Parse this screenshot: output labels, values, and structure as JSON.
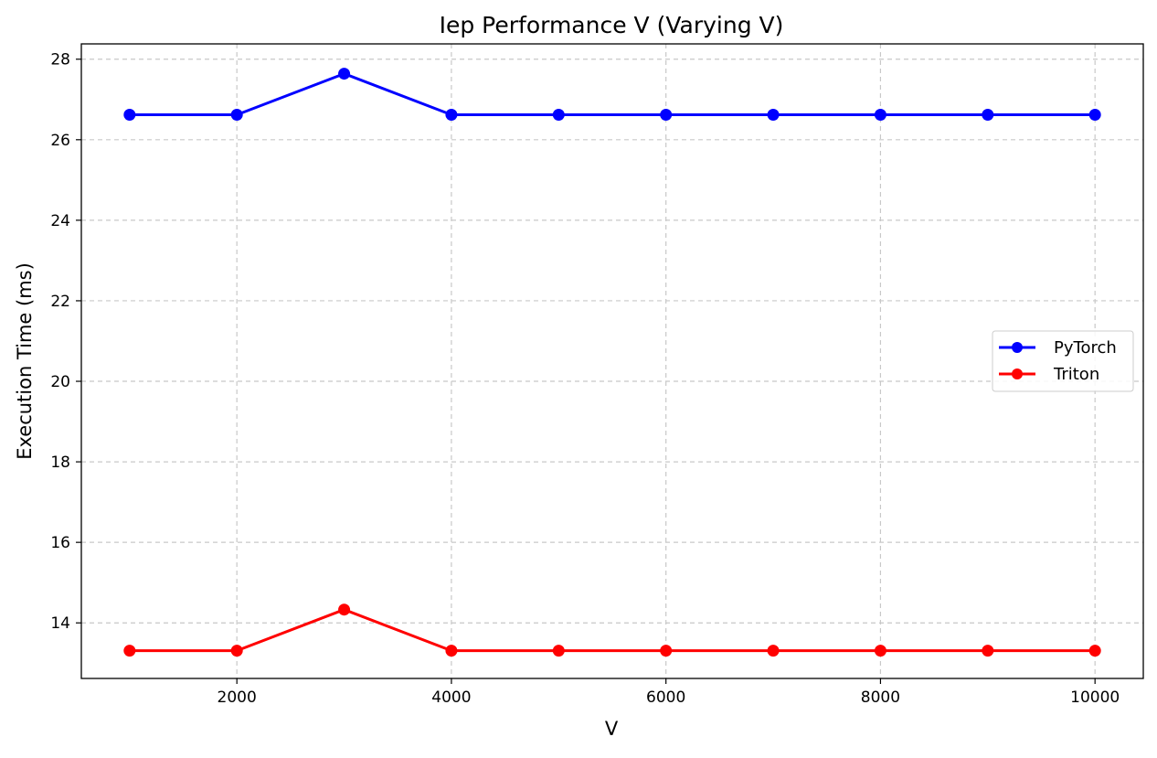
{
  "chart_data": {
    "type": "line",
    "title": "Iep Performance V (Varying V)",
    "xlabel": "V",
    "ylabel": "Execution Time (ms)",
    "x": [
      1000,
      2000,
      3000,
      4000,
      5000,
      6000,
      7000,
      8000,
      9000,
      10000
    ],
    "series": [
      {
        "name": "PyTorch",
        "color": "#0000ff",
        "values": [
          26.62,
          26.62,
          27.64,
          26.62,
          26.62,
          26.62,
          26.62,
          26.62,
          26.62,
          26.62
        ]
      },
      {
        "name": "Triton",
        "color": "#ff0000",
        "values": [
          13.31,
          13.31,
          14.33,
          13.31,
          13.31,
          13.31,
          13.31,
          13.31,
          13.31,
          13.31
        ]
      }
    ],
    "xlim": [
      550,
      10450
    ],
    "ylim": [
      12.62,
      28.38
    ],
    "xticks": [
      2000,
      4000,
      6000,
      8000,
      10000
    ],
    "yticks": [
      14,
      16,
      18,
      20,
      22,
      24,
      26,
      28
    ],
    "grid": true,
    "legend_position": "center-right"
  }
}
